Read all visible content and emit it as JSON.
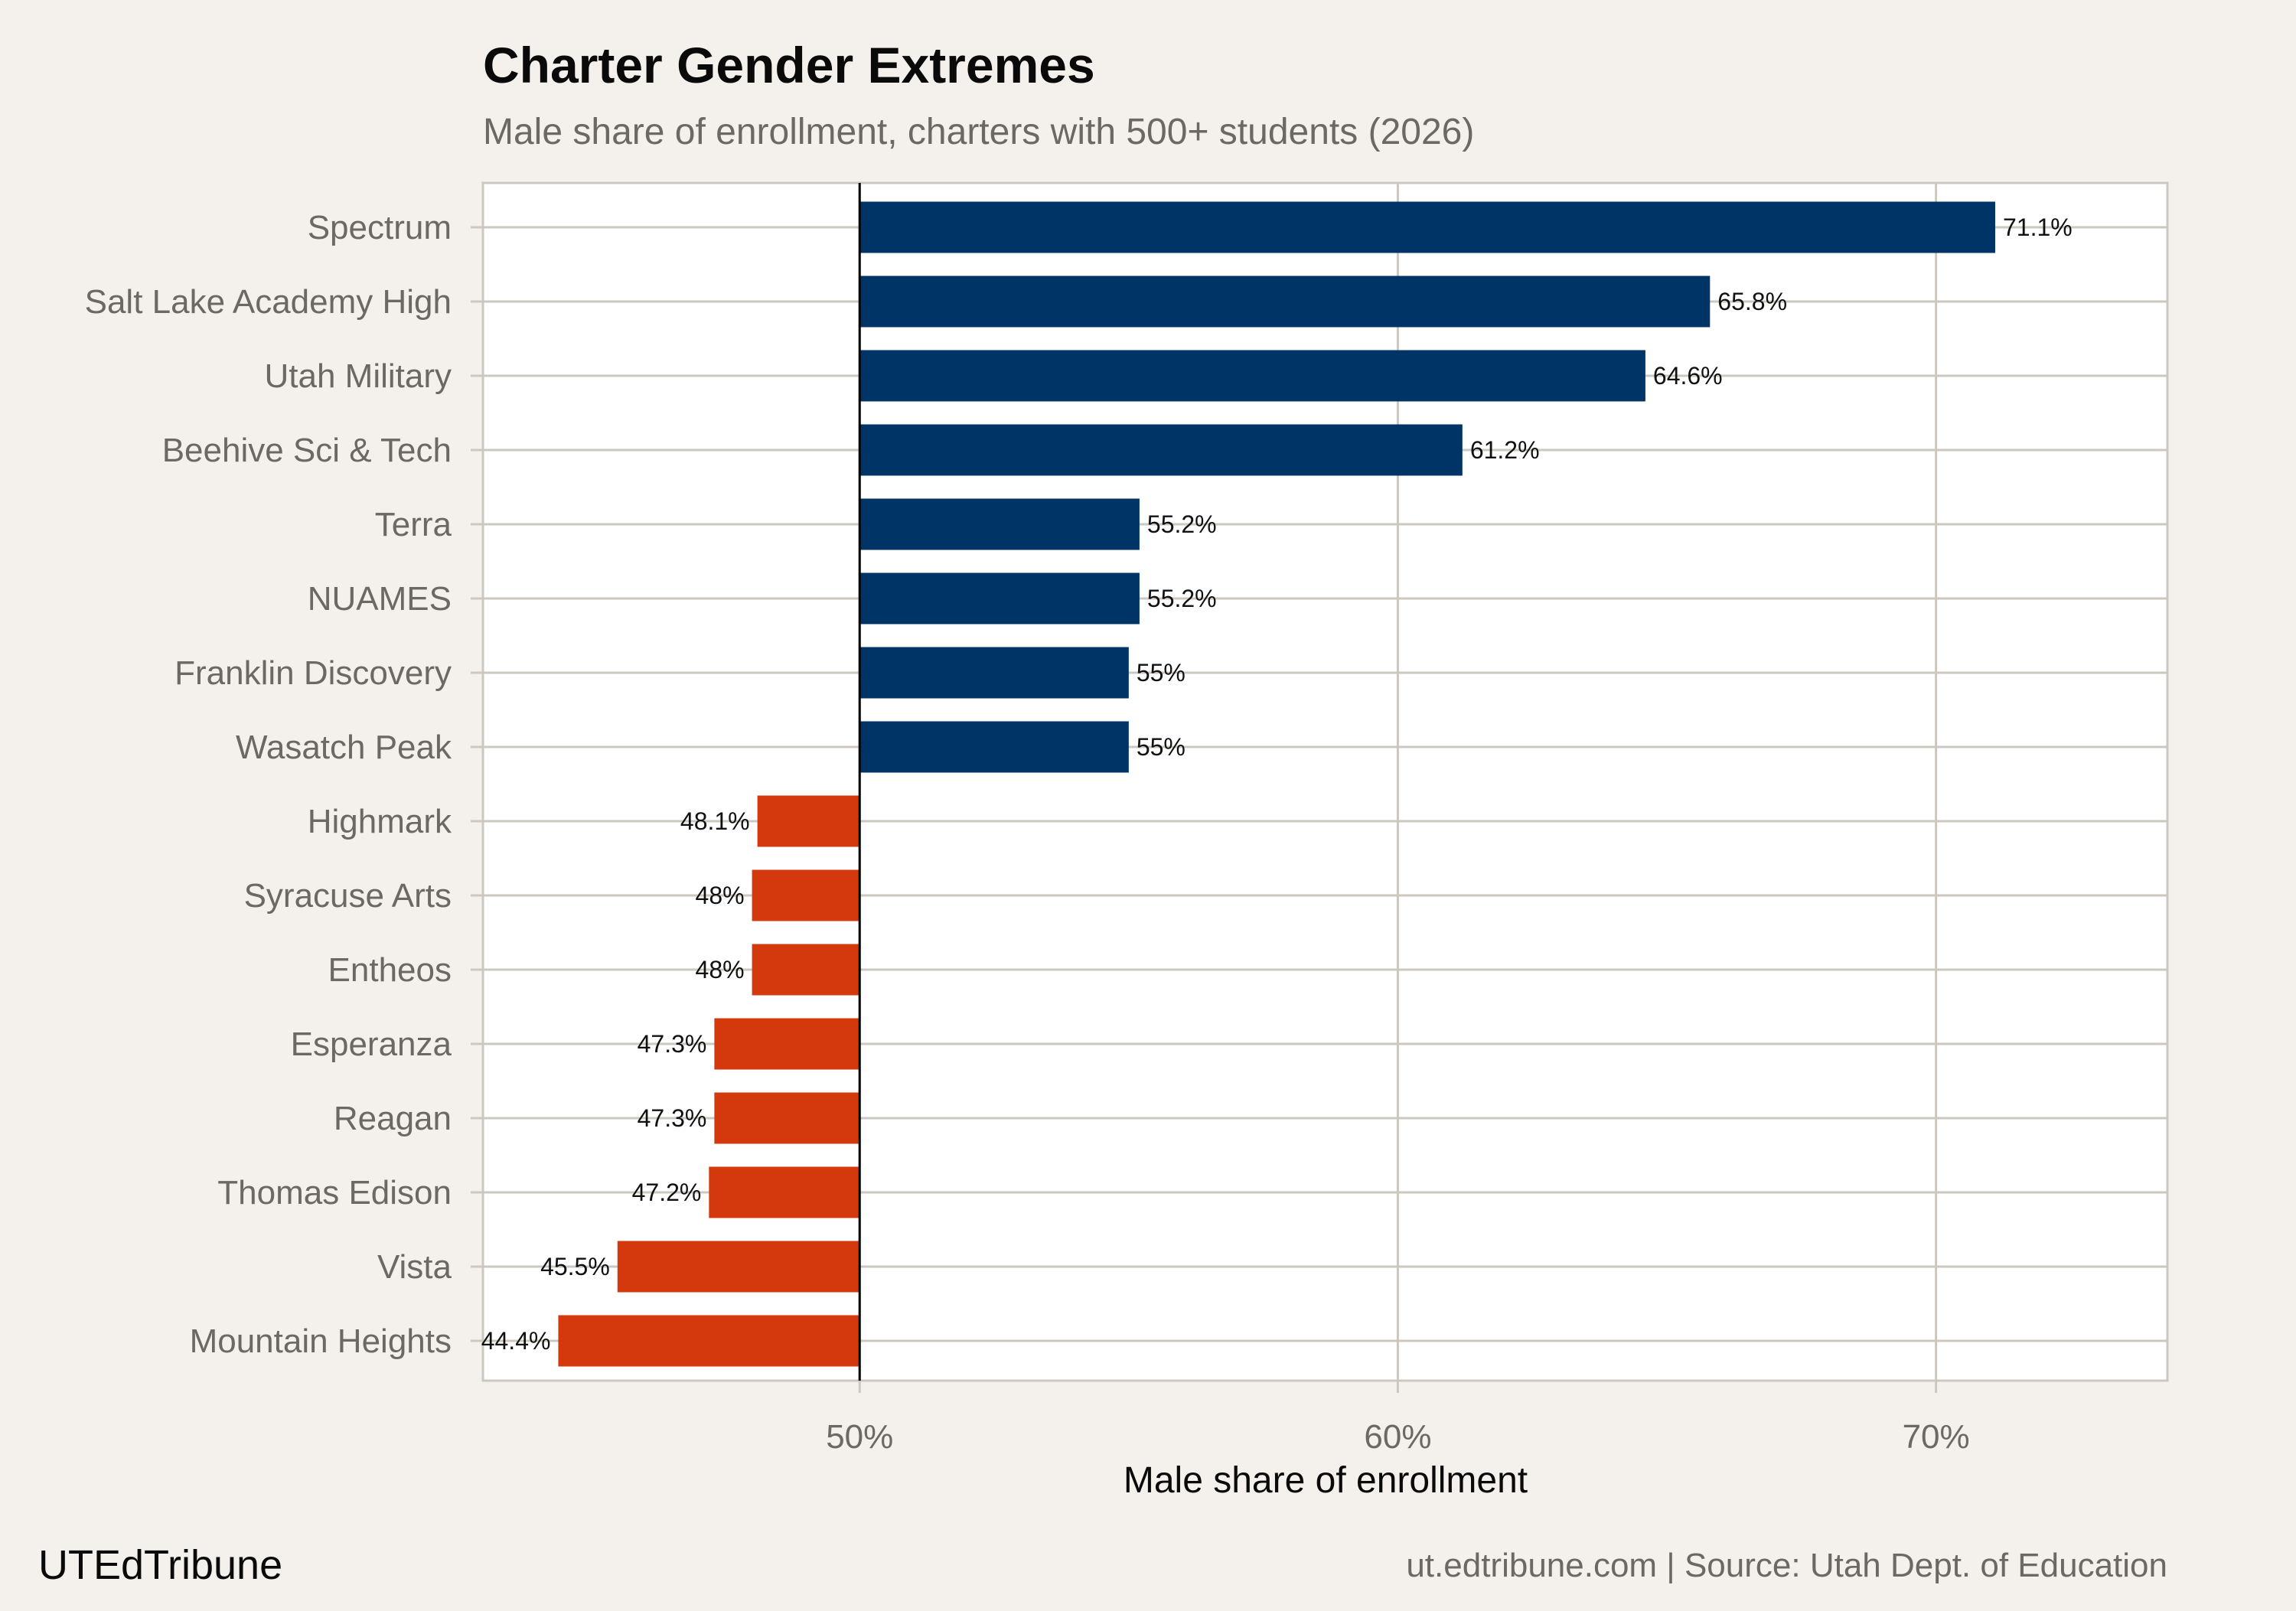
{
  "colors": {
    "background": "#f4f1ec",
    "above_50": "#003366",
    "below_50": "#d4380d",
    "reference_line": "#000000"
  },
  "chart_data": {
    "type": "bar",
    "orientation": "horizontal",
    "title": "Charter Gender Extremes",
    "subtitle": "Male share of enrollment, charters with 500+ students (2026)",
    "xlabel": "Male share of enrollment",
    "ylabel": "",
    "baseline": 50,
    "xlim": [
      43,
      74.3
    ],
    "xticks": [
      50,
      60,
      70
    ],
    "xtick_labels": [
      "50%",
      "60%",
      "70%"
    ],
    "grid": true,
    "categories": [
      "Spectrum",
      "Salt Lake Academy High",
      "Utah Military",
      "Beehive Sci & Tech",
      "Terra",
      "NUAMES",
      "Franklin Discovery",
      "Wasatch Peak",
      "Highmark",
      "Syracuse Arts",
      "Entheos",
      "Esperanza",
      "Reagan",
      "Thomas Edison",
      "Vista",
      "Mountain Heights"
    ],
    "values": [
      71.1,
      65.8,
      64.6,
      61.2,
      55.2,
      55.2,
      55.0,
      55.0,
      48.1,
      48.0,
      48.0,
      47.3,
      47.3,
      47.2,
      45.5,
      44.4
    ],
    "data_labels": [
      "71.1%",
      "65.8%",
      "64.6%",
      "61.2%",
      "55.2%",
      "55.2%",
      "55%",
      "55%",
      "48.1%",
      "48%",
      "48%",
      "47.3%",
      "47.3%",
      "47.2%",
      "45.5%",
      "44.4%"
    ]
  },
  "footer": {
    "brand": "UTEdTribune",
    "caption": "ut.edtribune.com | Source: Utah Dept. of Education"
  }
}
